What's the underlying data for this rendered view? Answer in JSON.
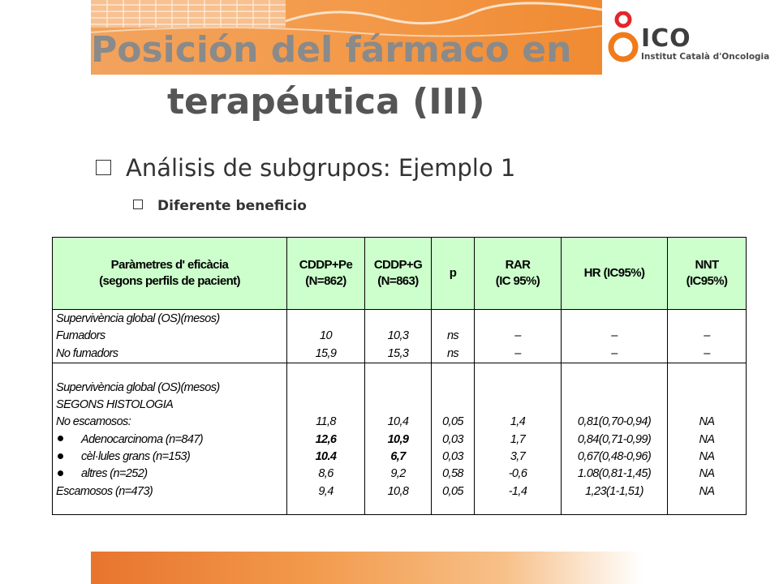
{
  "colors": {
    "title_gray": "#6b6b6b",
    "banner_orange": "#f08a32",
    "header_green": "#ccffcc",
    "logo_orange": "#f07b1a",
    "logo_red": "#e5252a"
  },
  "header": {
    "title_line1": "Posición del fármaco en",
    "title_line2": "terapéutica (III)"
  },
  "logo": {
    "name": "ICO",
    "subtitle": "Institut Català d'Oncologia"
  },
  "bullets": {
    "level1": "Análisis de subgrupos: Ejemplo 1",
    "level2": "Diferente beneficio"
  },
  "table": {
    "columns": [
      {
        "line1": "Paràmetres d' eficàcia",
        "line2": "(segons perfils de pacient)"
      },
      {
        "line1": "CDDP+Pe",
        "line2": "(N=862)"
      },
      {
        "line1": "CDDP+G",
        "line2": "(N=863)"
      },
      {
        "line1": "p",
        "line2": ""
      },
      {
        "line1": "RAR",
        "line2": "(IC 95%)"
      },
      {
        "line1": "HR (IC95%)",
        "line2": ""
      },
      {
        "line1": "NNT",
        "line2": "(IC95%)"
      }
    ],
    "section1": [
      {
        "label": "Supervivència global (OS)(mesos)",
        "cddp_pe": "",
        "cddp_g": "",
        "p": "",
        "rar": "",
        "hr": "",
        "nnt": ""
      },
      {
        "label": "Fumadors",
        "cddp_pe": "10",
        "cddp_g": "10,3",
        "p": "ns",
        "rar": "–",
        "hr": "–",
        "nnt": "–"
      },
      {
        "label": "No fumadors",
        "cddp_pe": "15,9",
        "cddp_g": "15,3",
        "p": "ns",
        "rar": "–",
        "hr": "–",
        "nnt": "–"
      }
    ],
    "section2": [
      {
        "label": "Supervivència global (OS)(mesos)",
        "cddp_pe": "",
        "cddp_g": "",
        "p": "",
        "rar": "",
        "hr": "",
        "nnt": ""
      },
      {
        "label": "SEGONS HISTOLOGIA",
        "cddp_pe": "",
        "cddp_g": "",
        "p": "",
        "rar": "",
        "hr": "",
        "nnt": ""
      },
      {
        "label": "No escamosos:",
        "cddp_pe": "11,8",
        "cddp_g": "10,4",
        "p": "0,05",
        "rar": "1,4",
        "hr": "0,81(0,70-0,94)",
        "nnt": "NA"
      },
      {
        "label": "Adenocarcinoma (n=847)",
        "cddp_pe": "12,6",
        "cddp_g": "10,9",
        "p": "0,03",
        "rar": "1,7",
        "hr": "0,84(0,71-0,99)",
        "nnt": "NA"
      },
      {
        "label": "cèl·lules grans (n=153)",
        "cddp_pe": "10.4",
        "cddp_g": "6,7",
        "p": "0,03",
        "rar": "3,7",
        "hr": "0,67(0,48-0,96)",
        "nnt": "NA"
      },
      {
        "label": "altres (n=252)",
        "cddp_pe": "8,6",
        "cddp_g": "9,2",
        "p": "0,58",
        "rar": "-0,6",
        "hr": "1.08(0,81-1,45)",
        "nnt": "NA"
      },
      {
        "label": "Escamosos (n=473)",
        "cddp_pe": "9,4",
        "cddp_g": "10,8",
        "p": "0,05",
        "rar": "-1,4",
        "hr": "1,23(1-1,51)",
        "nnt": "NA"
      }
    ]
  }
}
